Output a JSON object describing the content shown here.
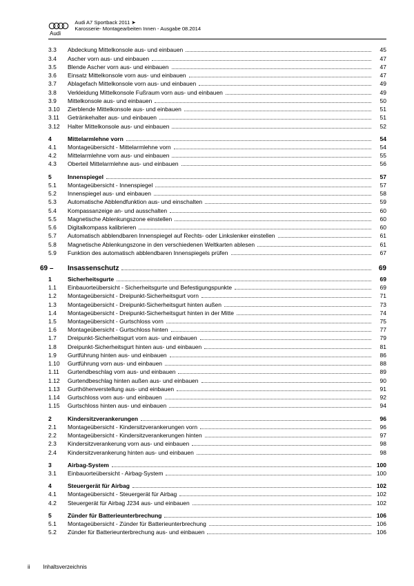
{
  "header": {
    "line1_model": "Audi A7 Sportback 2011",
    "line1_arrow": "➤",
    "line2": "Karosserie- Montagearbeiten Innen - Ausgabe 08.2014",
    "brand": "Audi"
  },
  "footer": {
    "page": "ii",
    "label": "Inhaltsverzeichnis"
  },
  "chapter": {
    "num": "69 –",
    "title": "Insassenschutz",
    "page": "69"
  },
  "toc": [
    {
      "n": "3.3",
      "t": "Abdeckung Mittelkonsole aus- und einbauen",
      "p": "45"
    },
    {
      "n": "3.4",
      "t": "Ascher vorn aus- und einbauen",
      "p": "47"
    },
    {
      "n": "3.5",
      "t": "Blende Ascher vorn aus- und einbauen",
      "p": "47"
    },
    {
      "n": "3.6",
      "t": "Einsatz Mittelkonsole vorn aus- und einbauen",
      "p": "47"
    },
    {
      "n": "3.7",
      "t": "Ablagefach Mittelkonsole vorn aus- und einbauen",
      "p": "49"
    },
    {
      "n": "3.8",
      "t": "Verkleidung Mittelkonsole Fußraum vorn aus- und einbauen",
      "p": "49"
    },
    {
      "n": "3.9",
      "t": "Mittelkonsole aus- und einbauen",
      "p": "50"
    },
    {
      "n": "3.10",
      "t": "Zierblende Mittelkonsole aus- und einbauen",
      "p": "51"
    },
    {
      "n": "3.11",
      "t": "Getränkehalter aus- und einbauen",
      "p": "51"
    },
    {
      "n": "3.12",
      "t": "Halter Mittelkonsole aus- und einbauen",
      "p": "52"
    },
    {
      "n": "4",
      "t": "Mittelarmlehne vorn",
      "p": "54",
      "b": true,
      "gap": true
    },
    {
      "n": "4.1",
      "t": "Montageübersicht - Mittelarmlehne vorn",
      "p": "54"
    },
    {
      "n": "4.2",
      "t": "Mittelarmlehne vorn aus- und einbauen",
      "p": "55"
    },
    {
      "n": "4.3",
      "t": "Oberteil Mittelarmlehne aus- und einbauen",
      "p": "56"
    },
    {
      "n": "5",
      "t": "Innenspiegel",
      "p": "57",
      "b": true,
      "gap": true
    },
    {
      "n": "5.1",
      "t": "Montageübersicht - Innenspiegel",
      "p": "57"
    },
    {
      "n": "5.2",
      "t": "Innenspiegel aus- und einbauen",
      "p": "58"
    },
    {
      "n": "5.3",
      "t": "Automatische Abblendfunktion aus- und einschalten",
      "p": "59"
    },
    {
      "n": "5.4",
      "t": "Kompassanzeige an- und ausschalten",
      "p": "60"
    },
    {
      "n": "5.5",
      "t": "Magnetische Ablenkungszone einstellen",
      "p": "60"
    },
    {
      "n": "5.6",
      "t": "Digitalkompass kalibrieren",
      "p": "60"
    },
    {
      "n": "5.7",
      "t": "Automatisch abblendbaren Innenspiegel auf Rechts- oder Linkslenker einstellen",
      "p": "61"
    },
    {
      "n": "5.8",
      "t": "Magnetische Ablenkungszone in den verschiedenen Weltkarten ablesen",
      "p": "61"
    },
    {
      "n": "5.9",
      "t": "Funktion des automatisch abblendbaren Innenspiegels prüfen",
      "p": "67"
    }
  ],
  "toc2": [
    {
      "n": "1",
      "t": "Sicherheitsgurte",
      "p": "69",
      "b": true
    },
    {
      "n": "1.1",
      "t": "Einbauorteübersicht - Sicherheitsgurte und Befestigungspunkte",
      "p": "69"
    },
    {
      "n": "1.2",
      "t": "Montageübersicht - Dreipunkt-Sicherheitsgurt vorn",
      "p": "71"
    },
    {
      "n": "1.3",
      "t": "Montageübersicht - Dreipunkt-Sicherheitsgurt hinten außen",
      "p": "73"
    },
    {
      "n": "1.4",
      "t": "Montageübersicht - Dreipunkt-Sicherheitsgurt hinten in der Mitte",
      "p": "74"
    },
    {
      "n": "1.5",
      "t": "Montageübersicht - Gurtschloss vorn",
      "p": "75"
    },
    {
      "n": "1.6",
      "t": "Montageübersicht - Gurtschloss hinten",
      "p": "77"
    },
    {
      "n": "1.7",
      "t": "Dreipunkt-Sicherheitsgurt vorn aus- und einbauen",
      "p": "79"
    },
    {
      "n": "1.8",
      "t": "Dreipunkt-Sicherheitsgurt hinten aus- und einbauen",
      "p": "81"
    },
    {
      "n": "1.9",
      "t": "Gurtführung hinten aus- und einbauen",
      "p": "86"
    },
    {
      "n": "1.10",
      "t": "Gurtführung vorn aus- und einbauen",
      "p": "88"
    },
    {
      "n": "1.11",
      "t": "Gurtendbeschlag vorn aus- und einbauen",
      "p": "89"
    },
    {
      "n": "1.12",
      "t": "Gurtendbeschlag hinten außen aus- und einbauen",
      "p": "90"
    },
    {
      "n": "1.13",
      "t": "Gurthöhenverstellung aus- und einbauen",
      "p": "91"
    },
    {
      "n": "1.14",
      "t": "Gurtschloss vorn aus- und einbauen",
      "p": "92"
    },
    {
      "n": "1.15",
      "t": "Gurtschloss hinten aus- und einbauen",
      "p": "94"
    },
    {
      "n": "2",
      "t": "Kindersitzverankerungen",
      "p": "96",
      "b": true,
      "gap": true
    },
    {
      "n": "2.1",
      "t": "Montageübersicht - Kindersitzverankerungen vorn",
      "p": "96"
    },
    {
      "n": "2.2",
      "t": "Montageübersicht - Kindersitzverankerungen hinten",
      "p": "97"
    },
    {
      "n": "2.3",
      "t": "Kindersitzverankerung vorn aus- und einbauen",
      "p": "98"
    },
    {
      "n": "2.4",
      "t": "Kindersitzverankerung hinten aus- und einbauen",
      "p": "98"
    },
    {
      "n": "3",
      "t": "Airbag-System",
      "p": "100",
      "b": true,
      "gap": true
    },
    {
      "n": "3.1",
      "t": "Einbauorteübersicht - Airbag-System",
      "p": "100"
    },
    {
      "n": "4",
      "t": "Steuergerät für Airbag",
      "p": "102",
      "b": true,
      "gap": true
    },
    {
      "n": "4.1",
      "t": "Montageübersicht - Steuergerät für Airbag",
      "p": "102"
    },
    {
      "n": "4.2",
      "t": "Steuergerät für Airbag J234 aus- und einbauen",
      "p": "102"
    },
    {
      "n": "5",
      "t": "Zünder für Batterieunterbrechung",
      "p": "106",
      "b": true,
      "gap": true
    },
    {
      "n": "5.1",
      "t": "Montageübersicht - Zünder für Batterieunterbrechung",
      "p": "106"
    },
    {
      "n": "5.2",
      "t": "Zünder für Batterieunterbrechung aus- und einbauen",
      "p": "106"
    }
  ]
}
